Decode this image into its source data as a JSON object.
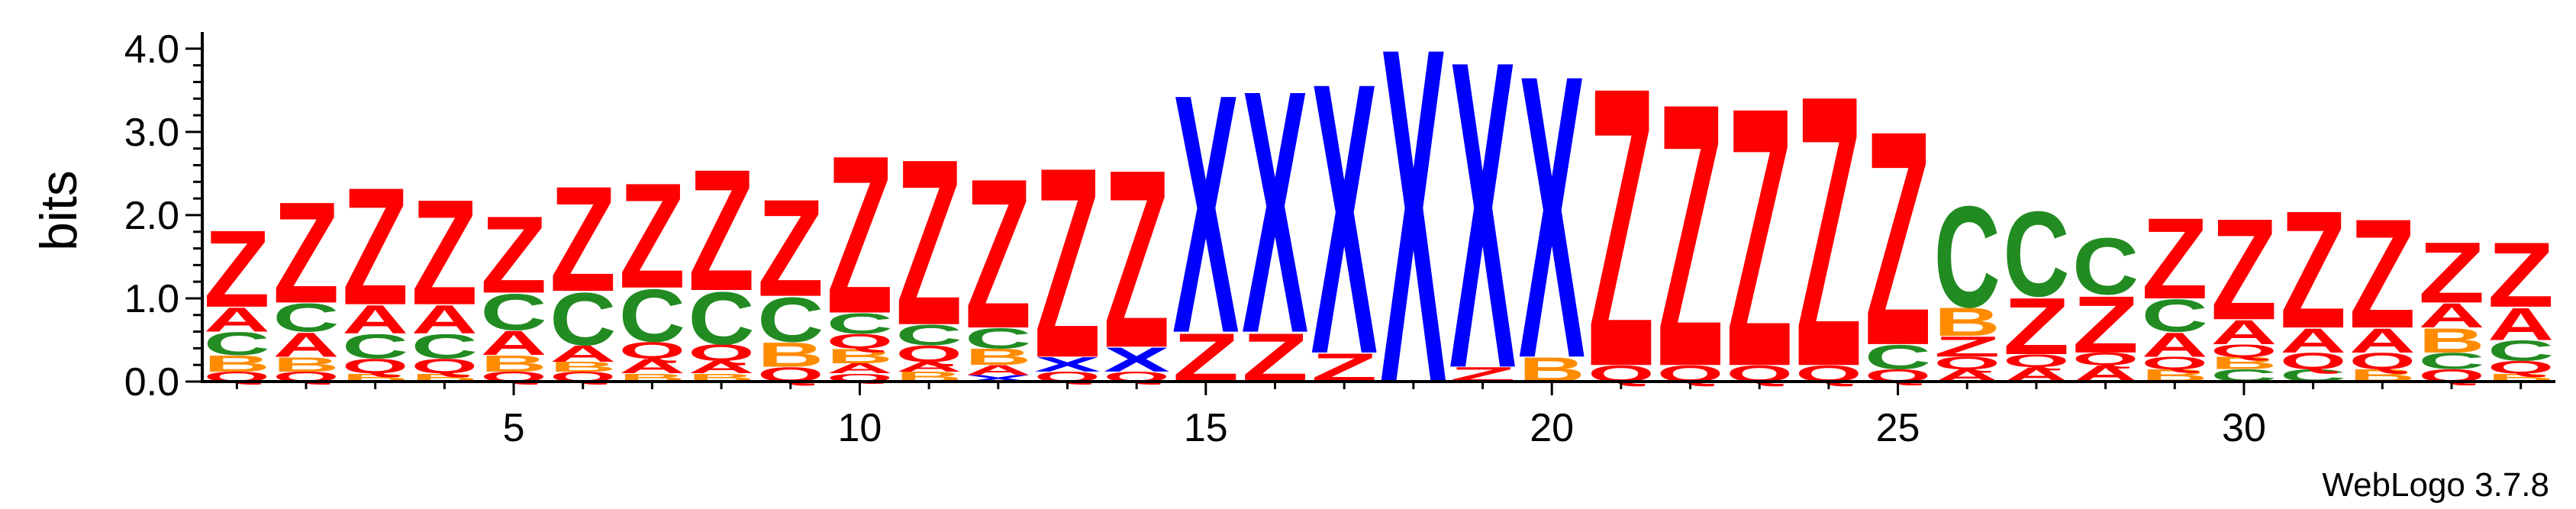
{
  "chart_data": {
    "type": "sequence-logo",
    "ylabel": "bits",
    "ylim": [
      0,
      4.2
    ],
    "yticks": [
      "0.0",
      "1.0",
      "2.0",
      "3.0",
      "4.0"
    ],
    "ytick_values": [
      0,
      1,
      2,
      3,
      4
    ],
    "xlim": [
      0.5,
      34.5
    ],
    "xticks": [
      "5",
      "10",
      "15",
      "20",
      "25",
      "30"
    ],
    "xtick_values": [
      5,
      10,
      15,
      20,
      25,
      30
    ],
    "credit": "WebLogo 3.7.8",
    "colors": {
      "Z": "#ff0000",
      "Q": "#ff0000",
      "X": "#0000ff",
      "C": "#228b22",
      "A": "#ff0000",
      "B": "#ff8c00"
    },
    "stacks": [
      {
        "position": 1,
        "letters": [
          [
            "Q",
            0.12
          ],
          [
            "B",
            0.2
          ],
          [
            "C",
            0.28
          ],
          [
            "A",
            0.3
          ],
          [
            "Z",
            0.95
          ]
        ]
      },
      {
        "position": 2,
        "letters": [
          [
            "Q",
            0.12
          ],
          [
            "B",
            0.18
          ],
          [
            "A",
            0.3
          ],
          [
            "C",
            0.35
          ],
          [
            "Z",
            1.25
          ]
        ]
      },
      {
        "position": 3,
        "letters": [
          [
            "B",
            0.1
          ],
          [
            "Q",
            0.18
          ],
          [
            "C",
            0.3
          ],
          [
            "A",
            0.35
          ],
          [
            "Z",
            1.45
          ]
        ]
      },
      {
        "position": 4,
        "letters": [
          [
            "B",
            0.1
          ],
          [
            "Q",
            0.18
          ],
          [
            "C",
            0.3
          ],
          [
            "A",
            0.35
          ],
          [
            "Z",
            1.3
          ]
        ]
      },
      {
        "position": 5,
        "letters": [
          [
            "Q",
            0.12
          ],
          [
            "B",
            0.2
          ],
          [
            "A",
            0.3
          ],
          [
            "C",
            0.45
          ],
          [
            "Z",
            0.95
          ]
        ]
      },
      {
        "position": 6,
        "letters": [
          [
            "Q",
            0.12
          ],
          [
            "B",
            0.12
          ],
          [
            "A",
            0.2
          ],
          [
            "C",
            0.65
          ],
          [
            "Z",
            1.3
          ]
        ]
      },
      {
        "position": 7,
        "letters": [
          [
            "B",
            0.1
          ],
          [
            "A",
            0.18
          ],
          [
            "Q",
            0.2
          ],
          [
            "C",
            0.65
          ],
          [
            "Z",
            1.3
          ]
        ]
      },
      {
        "position": 8,
        "letters": [
          [
            "B",
            0.1
          ],
          [
            "A",
            0.15
          ],
          [
            "Q",
            0.2
          ],
          [
            "C",
            0.65
          ],
          [
            "Z",
            1.5
          ]
        ]
      },
      {
        "position": 9,
        "letters": [
          [
            "Q",
            0.18
          ],
          [
            "B",
            0.3
          ],
          [
            "C",
            0.55
          ],
          [
            "Z",
            1.2
          ]
        ]
      },
      {
        "position": 10,
        "letters": [
          [
            "Q",
            0.1
          ],
          [
            "A",
            0.12
          ],
          [
            "B",
            0.18
          ],
          [
            "Q",
            0.18
          ],
          [
            "C",
            0.25
          ],
          [
            "Z",
            1.95
          ]
        ]
      },
      {
        "position": 11,
        "letters": [
          [
            "B",
            0.12
          ],
          [
            "A",
            0.12
          ],
          [
            "Q",
            0.2
          ],
          [
            "C",
            0.25
          ],
          [
            "Z",
            2.05
          ]
        ]
      },
      {
        "position": 12,
        "letters": [
          [
            "X",
            0.08
          ],
          [
            "A",
            0.12
          ],
          [
            "B",
            0.2
          ],
          [
            "C",
            0.25
          ],
          [
            "Z",
            1.85
          ]
        ]
      },
      {
        "position": 13,
        "letters": [
          [
            "Q",
            0.12
          ],
          [
            "X",
            0.18
          ],
          [
            "Z",
            2.35
          ]
        ]
      },
      {
        "position": 14,
        "letters": [
          [
            "Q",
            0.12
          ],
          [
            "X",
            0.3
          ],
          [
            "Z",
            2.2
          ]
        ]
      },
      {
        "position": 15,
        "letters": [
          [
            "Z",
            0.6
          ],
          [
            "X",
            2.95
          ]
        ]
      },
      {
        "position": 16,
        "letters": [
          [
            "Z",
            0.6
          ],
          [
            "X",
            3.0
          ]
        ]
      },
      {
        "position": 17,
        "letters": [
          [
            "Z",
            0.35
          ],
          [
            "X",
            3.35
          ]
        ]
      },
      {
        "position": 18,
        "letters": [
          [
            "X",
            4.15
          ]
        ]
      },
      {
        "position": 19,
        "letters": [
          [
            "Z",
            0.18
          ],
          [
            "X",
            3.8
          ]
        ]
      },
      {
        "position": 20,
        "letters": [
          [
            "B",
            0.3
          ],
          [
            "X",
            3.5
          ]
        ]
      },
      {
        "position": 21,
        "letters": [
          [
            "Q",
            0.2
          ],
          [
            "Z",
            3.45
          ]
        ]
      },
      {
        "position": 22,
        "letters": [
          [
            "Q",
            0.2
          ],
          [
            "Z",
            3.25
          ]
        ]
      },
      {
        "position": 23,
        "letters": [
          [
            "Q",
            0.2
          ],
          [
            "Z",
            3.2
          ]
        ]
      },
      {
        "position": 24,
        "letters": [
          [
            "Q",
            0.2
          ],
          [
            "Z",
            3.35
          ]
        ]
      },
      {
        "position": 25,
        "letters": [
          [
            "Q",
            0.15
          ],
          [
            "C",
            0.3
          ],
          [
            "Z",
            2.65
          ]
        ]
      },
      {
        "position": 26,
        "letters": [
          [
            "A",
            0.15
          ],
          [
            "Q",
            0.15
          ],
          [
            "Z",
            0.25
          ],
          [
            "B",
            0.35
          ],
          [
            "C",
            1.25
          ]
        ]
      },
      {
        "position": 27,
        "letters": [
          [
            "A",
            0.18
          ],
          [
            "Q",
            0.15
          ],
          [
            "Z",
            0.7
          ],
          [
            "C",
            1.05
          ]
        ]
      },
      {
        "position": 28,
        "letters": [
          [
            "A",
            0.2
          ],
          [
            "Q",
            0.15
          ],
          [
            "Z",
            0.7
          ],
          [
            "C",
            0.7
          ]
        ]
      },
      {
        "position": 29,
        "letters": [
          [
            "B",
            0.15
          ],
          [
            "Q",
            0.15
          ],
          [
            "A",
            0.3
          ],
          [
            "C",
            0.4
          ],
          [
            "Z",
            1.0
          ]
        ]
      },
      {
        "position": 30,
        "letters": [
          [
            "C",
            0.15
          ],
          [
            "B",
            0.15
          ],
          [
            "Q",
            0.15
          ],
          [
            "A",
            0.3
          ],
          [
            "Z",
            1.25
          ]
        ]
      },
      {
        "position": 31,
        "letters": [
          [
            "C",
            0.15
          ],
          [
            "Q",
            0.2
          ],
          [
            "A",
            0.3
          ],
          [
            "Z",
            1.45
          ]
        ]
      },
      {
        "position": 32,
        "letters": [
          [
            "B",
            0.15
          ],
          [
            "Q",
            0.2
          ],
          [
            "A",
            0.3
          ],
          [
            "Z",
            1.35
          ]
        ]
      },
      {
        "position": 33,
        "letters": [
          [
            "Q",
            0.15
          ],
          [
            "C",
            0.2
          ],
          [
            "B",
            0.3
          ],
          [
            "A",
            0.3
          ],
          [
            "Z",
            0.75
          ]
        ]
      },
      {
        "position": 34,
        "letters": [
          [
            "B",
            0.1
          ],
          [
            "Q",
            0.15
          ],
          [
            "C",
            0.25
          ],
          [
            "A",
            0.4
          ],
          [
            "Z",
            0.8
          ]
        ]
      }
    ]
  }
}
